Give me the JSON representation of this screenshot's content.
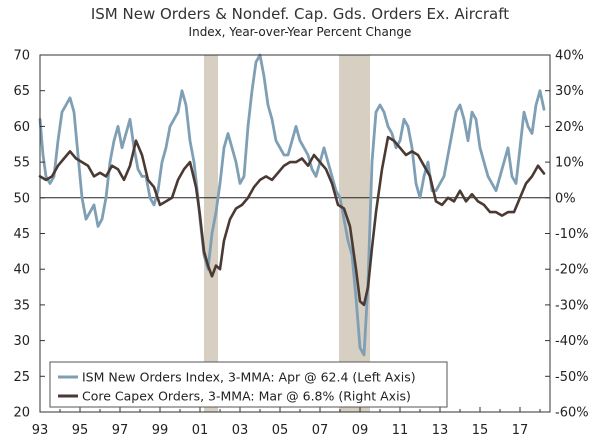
{
  "chart_data": {
    "type": "line",
    "title": "ISM New Orders & Nondef. Cap. Gds. Orders Ex. Aircraft",
    "subtitle": "Index, Year-over-Year Percent Change",
    "x_tick_labels": [
      "93",
      "95",
      "97",
      "99",
      "01",
      "03",
      "05",
      "07",
      "09",
      "11",
      "13",
      "15",
      "17"
    ],
    "x_tick_years": [
      1993,
      1995,
      1997,
      1999,
      2001,
      2003,
      2005,
      2007,
      2009,
      2011,
      2013,
      2015,
      2017
    ],
    "xlim": [
      1993.0,
      2018.5
    ],
    "left_axis": {
      "ylim": [
        20,
        70
      ],
      "ticks": [
        20,
        25,
        30,
        35,
        40,
        45,
        50,
        55,
        60,
        65,
        70
      ],
      "tick_labels": [
        "20",
        "25",
        "30",
        "35",
        "40",
        "45",
        "50",
        "55",
        "60",
        "65",
        "70"
      ]
    },
    "right_axis": {
      "ylim": [
        -60,
        40
      ],
      "ticks": [
        -60,
        -50,
        -40,
        -30,
        -20,
        -10,
        0,
        10,
        20,
        30,
        40
      ],
      "tick_labels": [
        "-60%",
        "-50%",
        "-40%",
        "-30%",
        "-20%",
        "-10%",
        "0%",
        "10%",
        "20%",
        "30%",
        "40%"
      ]
    },
    "reference_line": {
      "axis": "left",
      "value": 50
    },
    "recessions": [
      [
        2001.2,
        2001.9
      ],
      [
        2007.95,
        2009.5
      ]
    ],
    "series": [
      {
        "name": "ISM New Orders Index, 3-MMA: Apr @ 62.4 (Left Axis)",
        "axis": "left",
        "color": "#7f9fb5",
        "x": [
          1993.0,
          1993.15,
          1993.3,
          1993.5,
          1993.7,
          1993.9,
          1994.1,
          1994.3,
          1994.5,
          1994.7,
          1994.9,
          1995.1,
          1995.3,
          1995.5,
          1995.7,
          1995.9,
          1996.1,
          1996.3,
          1996.5,
          1996.7,
          1996.9,
          1997.1,
          1997.3,
          1997.5,
          1997.7,
          1997.9,
          1998.1,
          1998.3,
          1998.5,
          1998.7,
          1998.9,
          1999.1,
          1999.3,
          1999.5,
          1999.7,
          1999.9,
          2000.1,
          2000.3,
          2000.5,
          2000.7,
          2000.9,
          2001.0,
          2001.2,
          2001.4,
          2001.6,
          2001.8,
          2002.0,
          2002.2,
          2002.4,
          2002.6,
          2002.8,
          2003.0,
          2003.2,
          2003.4,
          2003.6,
          2003.8,
          2004.0,
          2004.2,
          2004.4,
          2004.6,
          2004.8,
          2005.0,
          2005.2,
          2005.4,
          2005.6,
          2005.8,
          2006.0,
          2006.2,
          2006.4,
          2006.6,
          2006.8,
          2007.0,
          2007.2,
          2007.4,
          2007.6,
          2007.8,
          2008.0,
          2008.2,
          2008.4,
          2008.6,
          2008.8,
          2009.0,
          2009.2,
          2009.4,
          2009.6,
          2009.8,
          2010.0,
          2010.2,
          2010.4,
          2010.6,
          2010.8,
          2011.0,
          2011.2,
          2011.4,
          2011.6,
          2011.8,
          2012.0,
          2012.2,
          2012.4,
          2012.6,
          2012.8,
          2013.0,
          2013.2,
          2013.4,
          2013.6,
          2013.8,
          2014.0,
          2014.2,
          2014.4,
          2014.6,
          2014.8,
          2015.0,
          2015.2,
          2015.4,
          2015.6,
          2015.8,
          2016.0,
          2016.2,
          2016.4,
          2016.6,
          2016.8,
          2017.0,
          2017.2,
          2017.4,
          2017.6,
          2017.8,
          2018.0,
          2018.2
        ],
        "values": [
          61,
          56,
          53,
          52,
          53,
          58,
          62,
          63,
          64,
          62,
          56,
          50,
          47,
          48,
          49,
          46,
          47,
          50,
          55,
          58,
          60,
          57,
          59,
          61,
          57,
          54,
          53,
          53,
          50,
          49,
          51,
          55,
          57,
          60,
          61,
          62,
          65,
          63,
          58,
          55,
          50,
          47,
          42,
          40,
          45,
          48,
          52,
          57,
          59,
          57,
          55,
          52,
          53,
          60,
          65,
          69,
          70,
          67,
          63,
          61,
          58,
          57,
          56,
          56,
          58,
          60,
          58,
          57,
          56,
          54,
          53,
          55,
          57,
          55,
          53,
          51,
          50,
          47,
          44,
          42,
          36,
          29,
          28,
          38,
          55,
          62,
          63,
          62,
          60,
          59,
          57,
          58,
          61,
          60,
          57,
          52,
          50,
          53,
          55,
          51,
          51,
          52,
          53,
          56,
          59,
          62,
          63,
          61,
          58,
          62,
          61,
          57,
          55,
          53,
          52,
          51,
          53,
          55,
          57,
          53,
          52,
          57,
          62,
          60,
          59,
          63,
          65,
          62.4
        ]
      },
      {
        "name": "Core Capex Orders, 3-MMA: Mar @ 6.8% (Right Axis)",
        "axis": "right",
        "color": "#4a3a33",
        "x": [
          1993.0,
          1993.3,
          1993.6,
          1993.9,
          1994.2,
          1994.5,
          1994.8,
          1995.1,
          1995.4,
          1995.7,
          1996.0,
          1996.3,
          1996.6,
          1996.9,
          1997.2,
          1997.5,
          1997.8,
          1998.1,
          1998.4,
          1998.7,
          1999.0,
          1999.3,
          1999.6,
          1999.9,
          2000.2,
          2000.5,
          2000.8,
          2001.0,
          2001.2,
          2001.4,
          2001.6,
          2001.8,
          2002.0,
          2002.2,
          2002.5,
          2002.8,
          2003.1,
          2003.4,
          2003.7,
          2004.0,
          2004.3,
          2004.6,
          2004.9,
          2005.2,
          2005.5,
          2005.8,
          2006.1,
          2006.4,
          2006.7,
          2007.0,
          2007.3,
          2007.6,
          2007.9,
          2008.2,
          2008.5,
          2008.8,
          2009.0,
          2009.2,
          2009.4,
          2009.6,
          2009.8,
          2010.1,
          2010.4,
          2010.7,
          2011.0,
          2011.3,
          2011.6,
          2011.9,
          2012.2,
          2012.5,
          2012.8,
          2013.1,
          2013.4,
          2013.7,
          2014.0,
          2014.3,
          2014.6,
          2014.9,
          2015.2,
          2015.5,
          2015.8,
          2016.1,
          2016.4,
          2016.7,
          2017.0,
          2017.3,
          2017.6,
          2017.9,
          2018.2
        ],
        "values": [
          6,
          5,
          6,
          9,
          11,
          13,
          11,
          10,
          9,
          6,
          7,
          6,
          9,
          8,
          5,
          9,
          16,
          12,
          5,
          3,
          -2,
          -1,
          0,
          5,
          8,
          10,
          3,
          -5,
          -15,
          -19,
          -22,
          -19,
          -20,
          -12,
          -6,
          -3,
          -2,
          0,
          3,
          5,
          6,
          5,
          7,
          9,
          10,
          10,
          11,
          9,
          12,
          10,
          8,
          4,
          -2,
          -3,
          -8,
          -20,
          -29,
          -30,
          -25,
          -14,
          -4,
          8,
          17,
          16,
          14,
          12,
          13,
          12,
          9,
          6,
          -1,
          -2,
          0,
          -1,
          2,
          -1,
          1,
          -1,
          -2,
          -4,
          -4,
          -5,
          -4,
          -4,
          0,
          4,
          6,
          9,
          6.8
        ]
      }
    ]
  },
  "legend": {
    "items": [
      {
        "label": "ISM New Orders Index, 3-MMA: Apr @ 62.4 (Left Axis)",
        "color": "#7f9fb5"
      },
      {
        "label": "Core Capex Orders, 3-MMA: Mar @ 6.8% (Right Axis)",
        "color": "#4a3a33"
      }
    ]
  }
}
